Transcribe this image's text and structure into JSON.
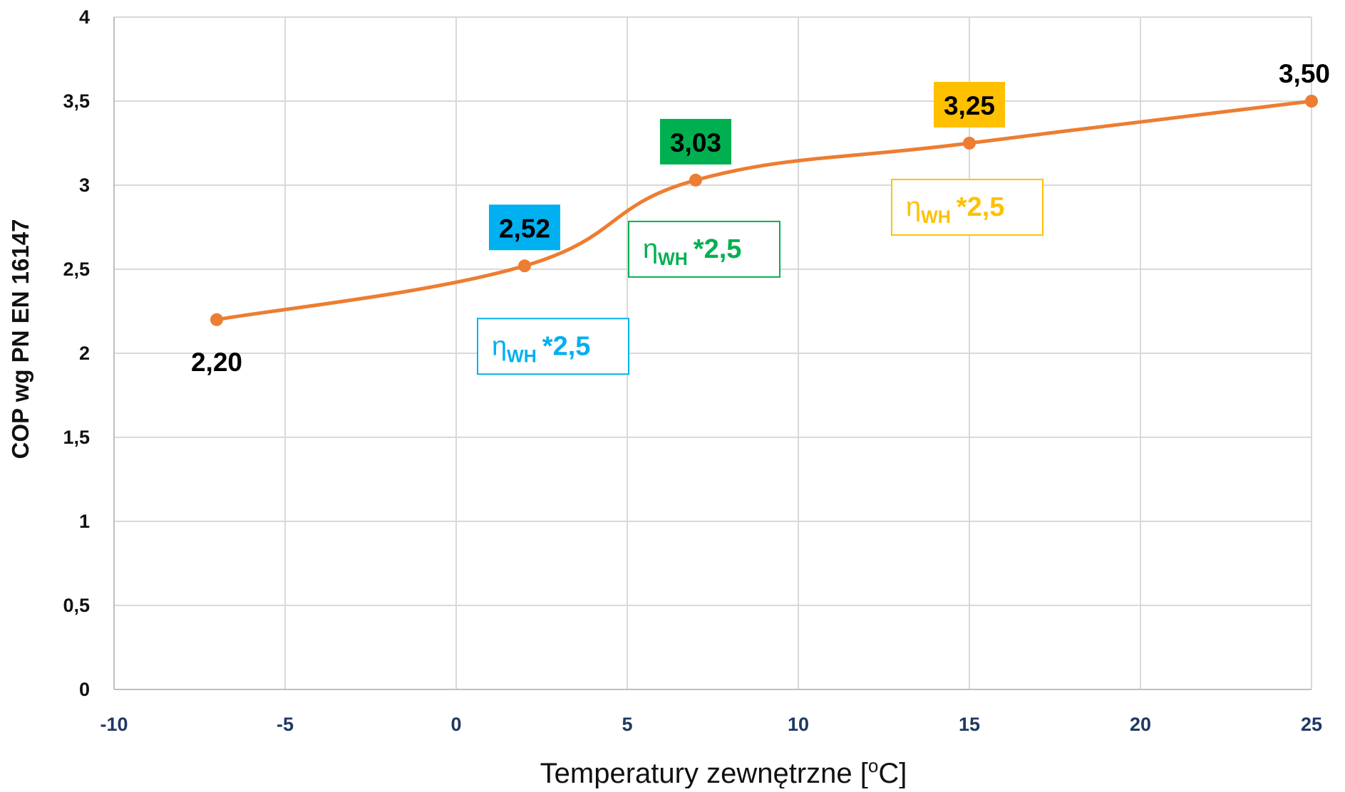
{
  "chart_data": {
    "type": "line",
    "xlabel": "Temperatury zewnętrzne [°C]",
    "xlabel_parts": {
      "before": "Temperatury zewnętrzne [",
      "sup": "o",
      "after": "C]"
    },
    "ylabel": "COP wg PN EN 16147",
    "xlim": [
      -10,
      25
    ],
    "ylim": [
      0,
      4
    ],
    "x_ticks": [
      -10,
      -5,
      0,
      5,
      10,
      15,
      20,
      25
    ],
    "x_tick_labels": [
      "-10",
      "-5",
      "0",
      "5",
      "10",
      "15",
      "20",
      "25"
    ],
    "y_ticks": [
      0,
      0.5,
      1,
      1.5,
      2,
      2.5,
      3,
      3.5,
      4
    ],
    "y_tick_labels": [
      "0",
      "0,5",
      "1",
      "1,5",
      "2",
      "2,5",
      "3",
      "3,5",
      "4"
    ],
    "grid": true,
    "smooth": true,
    "line_color": "#ed7d31",
    "points": [
      {
        "x": -7,
        "y": 2.2,
        "label": "2,20",
        "label_bg": null,
        "label_color": "#000000"
      },
      {
        "x": 2,
        "y": 2.52,
        "label": "2,52",
        "label_bg": "#00b0f0",
        "label_color": "#000000"
      },
      {
        "x": 7,
        "y": 3.03,
        "label": "3,03",
        "label_bg": "#00b050",
        "label_color": "#000000"
      },
      {
        "x": 15,
        "y": 3.25,
        "label": "3,25",
        "label_bg": "#ffc000",
        "label_color": "#000000"
      },
      {
        "x": 25,
        "y": 3.5,
        "label": "3,50",
        "label_bg": null,
        "label_color": "#000000"
      }
    ],
    "annotations": [
      {
        "symbol": "η",
        "sub": "WH",
        "text": "*2,5",
        "color": "#00b0f0",
        "anchor_point": 1
      },
      {
        "symbol": "η",
        "sub": "WH",
        "text": "*2,5",
        "color": "#00b050",
        "anchor_point": 2
      },
      {
        "symbol": "η",
        "sub": "WH",
        "text": "*2,5",
        "color": "#ffc000",
        "anchor_point": 3
      }
    ]
  }
}
